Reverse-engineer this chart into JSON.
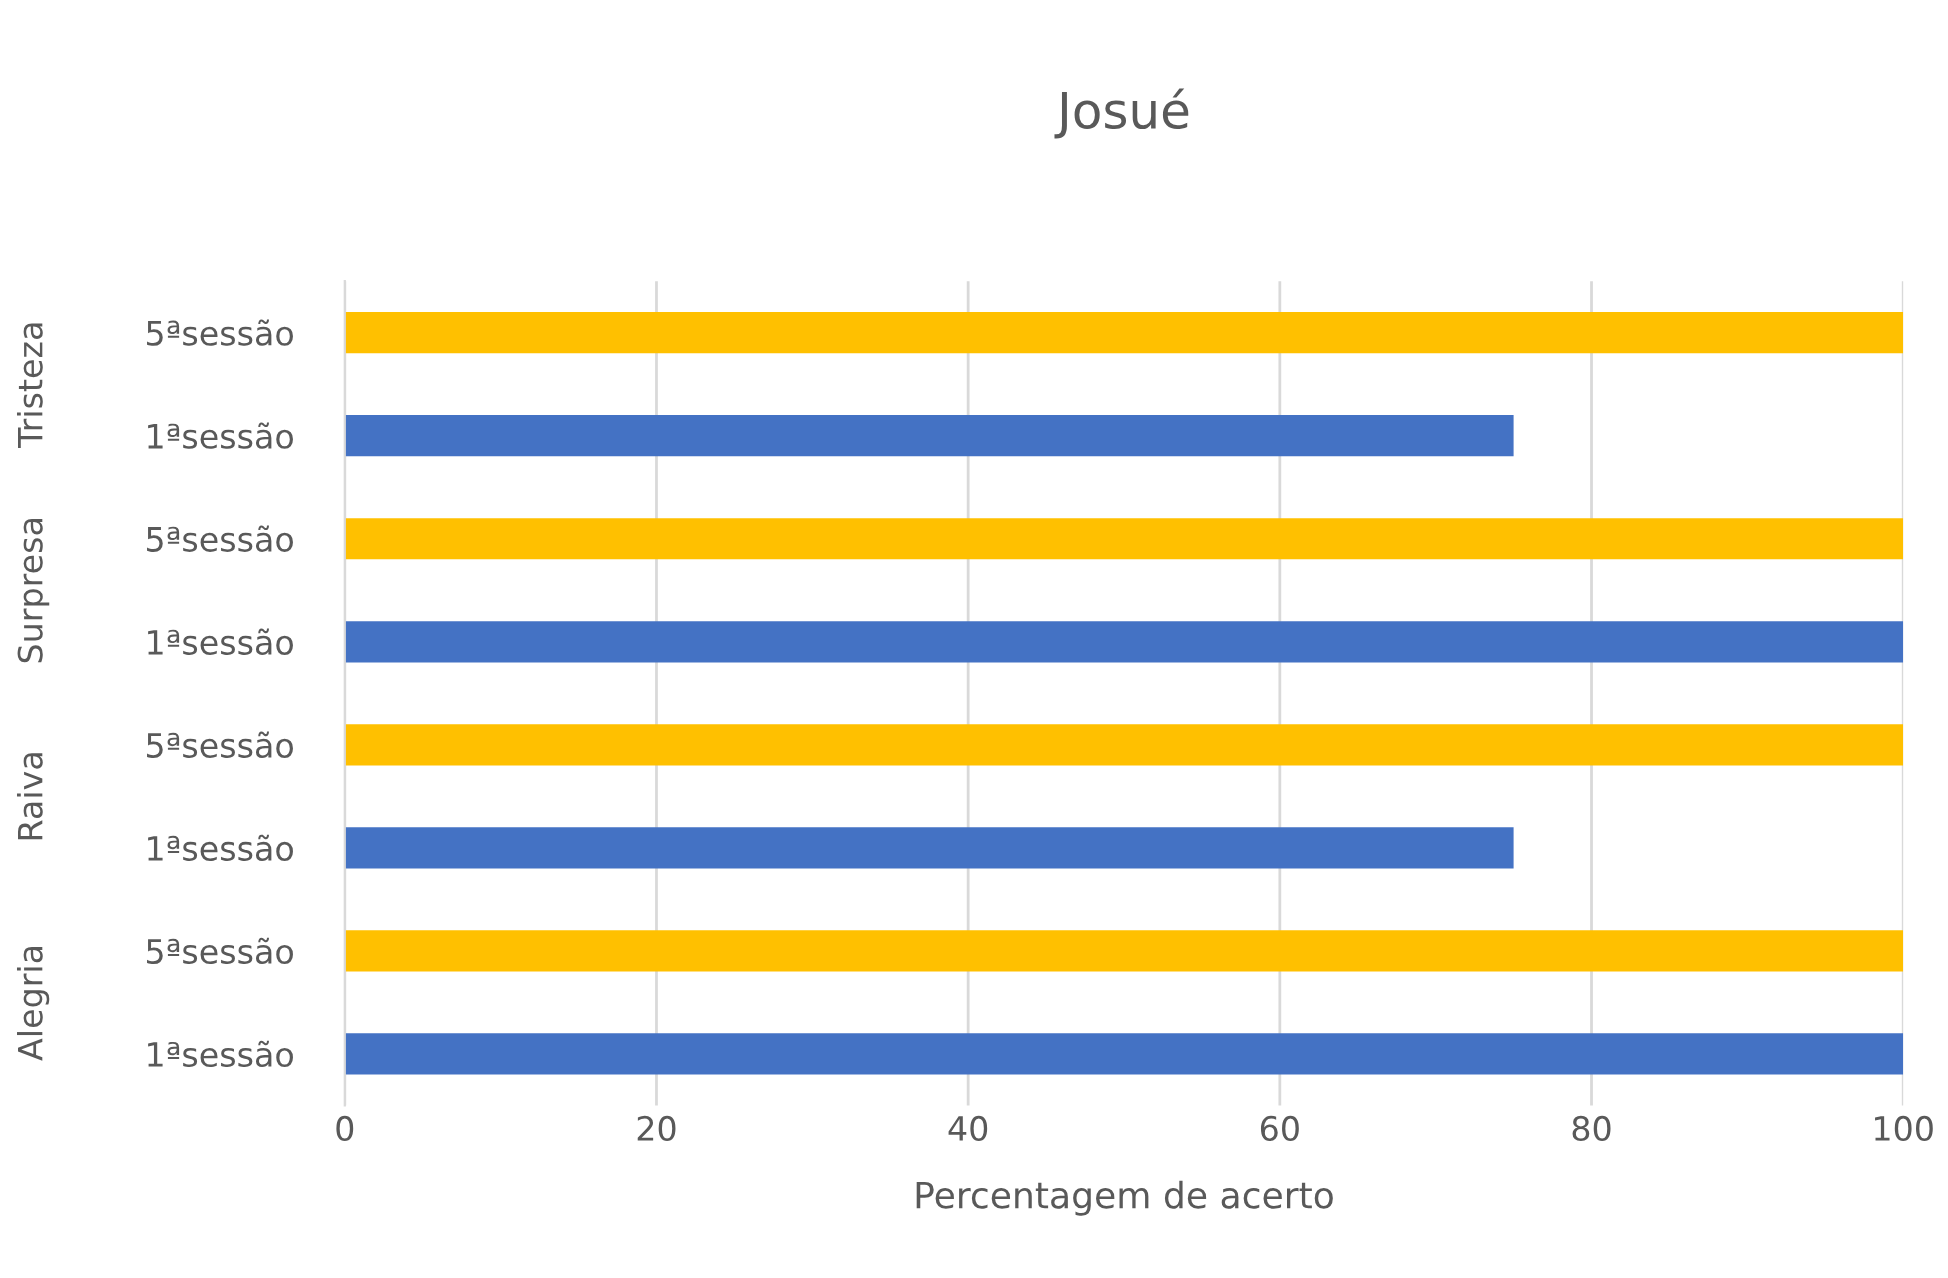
{
  "chart_data": {
    "type": "bar",
    "orientation": "horizontal",
    "title": "Josué",
    "xlabel": "Percentagem de acerto",
    "categories": [
      "5ªsessão",
      "1ªsessão",
      "5ªsessão",
      "1ªsessão",
      "5ªsessão",
      "1ªsessão",
      "5ªsessão",
      "1ªsessão"
    ],
    "values": [
      100,
      75,
      100,
      100,
      100,
      75,
      100,
      100
    ],
    "colors": [
      "#ffc000",
      "#4472c4",
      "#ffc000",
      "#4472c4",
      "#ffc000",
      "#4472c4",
      "#ffc000",
      "#4472c4"
    ],
    "annotations": [
      "Tristeza",
      "Surpresa",
      "Raiva",
      "Alegria"
    ],
    "xlim": [
      0,
      100
    ],
    "xticks": [
      0,
      20,
      40,
      60,
      80,
      100
    ],
    "grid": "x",
    "legend": false
  }
}
